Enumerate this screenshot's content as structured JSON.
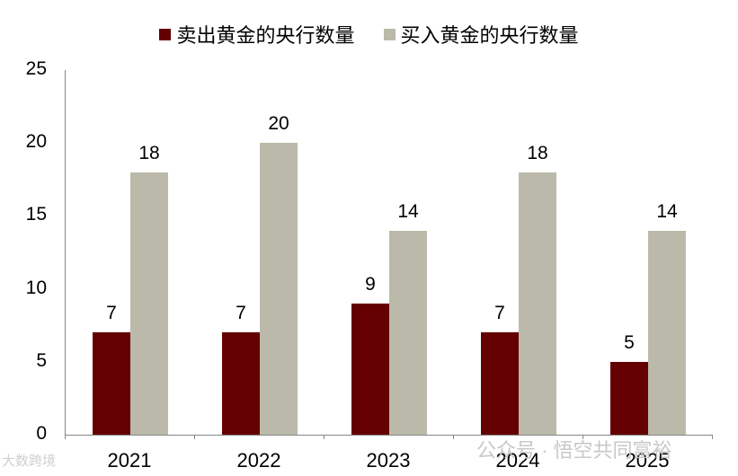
{
  "chart_data": {
    "type": "bar",
    "title": "",
    "xlabel": "",
    "ylabel": "",
    "categories": [
      "2021",
      "2022",
      "2023",
      "2024",
      "2025"
    ],
    "series": [
      {
        "name": "卖出黄金的央行数量",
        "color": "#640000",
        "values": [
          7,
          7,
          9,
          7,
          5
        ]
      },
      {
        "name": "买入黄金的央行数量",
        "color": "#bbbaaa",
        "values": [
          18,
          20,
          14,
          18,
          14
        ]
      }
    ],
    "ylim": [
      0,
      25
    ],
    "yticks": [
      0,
      5,
      10,
      15,
      20,
      25
    ],
    "grid": false,
    "legend_position": "top",
    "data_labels": true
  },
  "legend": [
    {
      "label": "卖出黄金的央行数量",
      "color": "#640000"
    },
    {
      "label": "买入黄金的央行数量",
      "color": "#bbbaaa"
    }
  ],
  "watermarks": {
    "left": "大数跨境",
    "right": "公众号 · 悟空共同富裕"
  }
}
